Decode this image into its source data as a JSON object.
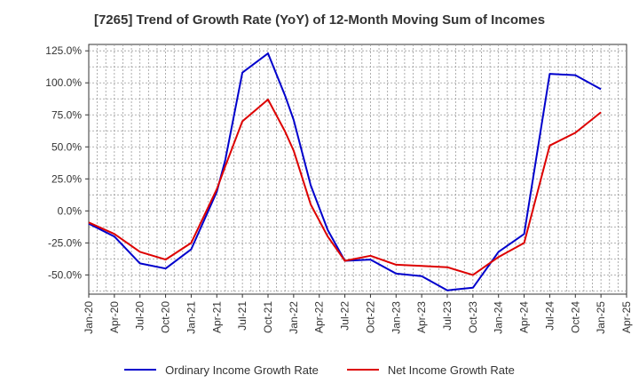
{
  "chart_data": {
    "type": "line",
    "title": "[7265]  Trend of Growth Rate (YoY) of 12-Month Moving Sum of Incomes",
    "xlabel": "",
    "ylabel": "",
    "x_ticks": [
      "Jan-20",
      "Apr-20",
      "Jul-20",
      "Oct-20",
      "Jan-21",
      "Apr-21",
      "Jul-21",
      "Oct-21",
      "Jan-22",
      "Apr-22",
      "Jul-22",
      "Oct-22",
      "Jan-23",
      "Apr-23",
      "Jul-23",
      "Oct-23",
      "Jan-24",
      "Apr-24",
      "Jul-24",
      "Oct-24",
      "Jan-25",
      "Apr-25"
    ],
    "y_ticks": [
      "125.0%",
      "100.0%",
      "75.0%",
      "50.0%",
      "25.0%",
      "0.0%",
      "-25.0%",
      "-50.0%"
    ],
    "y_tick_values": [
      125,
      100,
      75,
      50,
      25,
      0,
      -25,
      -50
    ],
    "ylim": [
      -65,
      130
    ],
    "grid": true,
    "legend_position": "bottom",
    "x": [
      "Jan-20",
      "Apr-20",
      "Jul-20",
      "Oct-20",
      "Jan-21",
      "Apr-21",
      "May-21",
      "Jul-21",
      "Oct-21",
      "Jan-22",
      "Apr-22",
      "Jul-22",
      "Oct-22",
      "Jan-23",
      "Apr-23",
      "Jul-23",
      "Oct-23",
      "Jan-24",
      "Apr-24",
      "Jul-24",
      "Oct-24",
      "Jan-25"
    ],
    "series": [
      {
        "name": "Ordinary Income Growth Rate",
        "color": "#0000cc",
        "points": [
          [
            "Jan-20",
            -10
          ],
          [
            "Apr-20",
            -20
          ],
          [
            "Jul-20",
            -41
          ],
          [
            "Oct-20",
            -45
          ],
          [
            "Jan-21",
            -30
          ],
          [
            "Apr-21",
            15
          ],
          [
            "May-21",
            40
          ],
          [
            "Jul-21",
            108
          ],
          [
            "Oct-21",
            123
          ],
          [
            "Dec-21",
            90
          ],
          [
            "Jan-22",
            71
          ],
          [
            "Mar-22",
            20
          ],
          [
            "May-22",
            -15
          ],
          [
            "Jul-22",
            -39
          ],
          [
            "Oct-22",
            -38
          ],
          [
            "Jan-23",
            -49
          ],
          [
            "Apr-23",
            -51
          ],
          [
            "Jul-23",
            -62
          ],
          [
            "Oct-23",
            -60
          ],
          [
            "Jan-24",
            -32
          ],
          [
            "Apr-24",
            -18
          ],
          [
            "Jul-24",
            107
          ],
          [
            "Oct-24",
            106
          ],
          [
            "Jan-25",
            95
          ]
        ]
      },
      {
        "name": "Net Income Growth Rate",
        "color": "#dd0000",
        "points": [
          [
            "Jan-20",
            -9
          ],
          [
            "Apr-20",
            -18
          ],
          [
            "Jul-20",
            -32
          ],
          [
            "Oct-20",
            -38
          ],
          [
            "Jan-21",
            -25
          ],
          [
            "Apr-21",
            17
          ],
          [
            "May-21",
            35
          ],
          [
            "Jul-21",
            70
          ],
          [
            "Oct-21",
            87
          ],
          [
            "Dec-21",
            62
          ],
          [
            "Jan-22",
            47
          ],
          [
            "Mar-22",
            5
          ],
          [
            "May-22",
            -20
          ],
          [
            "Jul-22",
            -39
          ],
          [
            "Oct-22",
            -35
          ],
          [
            "Jan-23",
            -42
          ],
          [
            "Apr-23",
            -43
          ],
          [
            "Jul-23",
            -44
          ],
          [
            "Oct-23",
            -50
          ],
          [
            "Jan-24",
            -36
          ],
          [
            "Apr-24",
            -25
          ],
          [
            "Jul-24",
            51
          ],
          [
            "Oct-24",
            61
          ],
          [
            "Jan-25",
            77
          ]
        ]
      }
    ]
  }
}
